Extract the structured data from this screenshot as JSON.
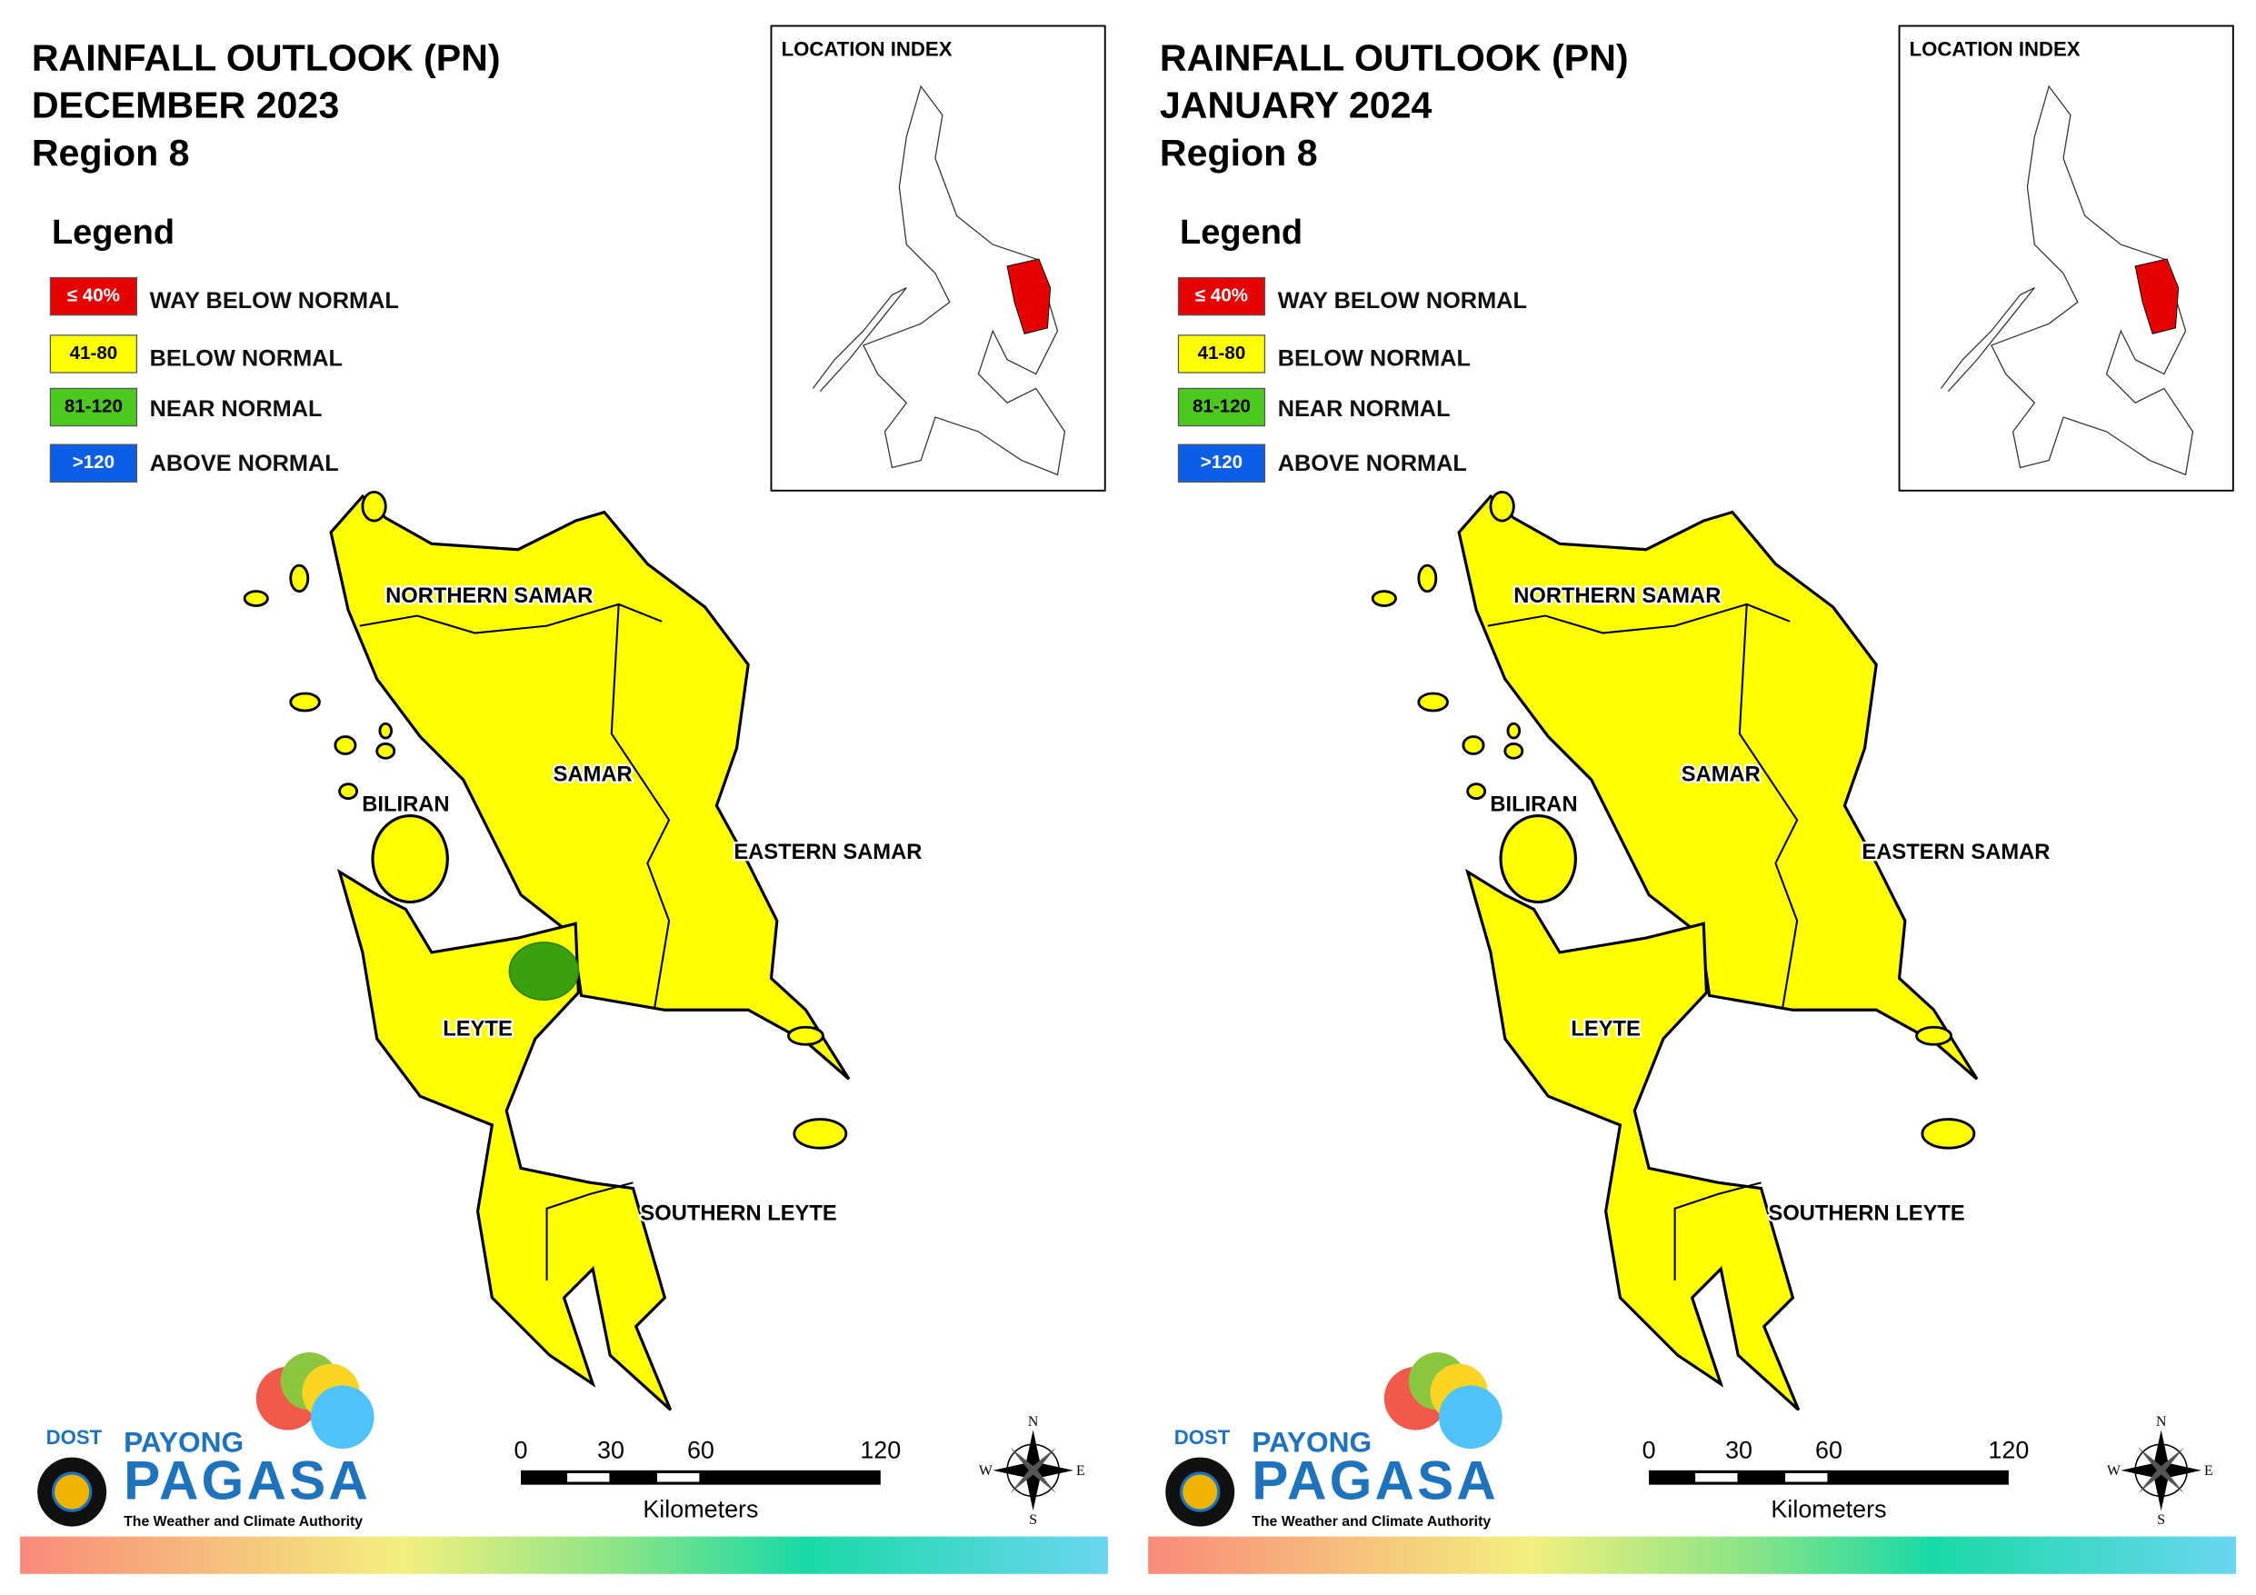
{
  "panels": [
    {
      "title": [
        "RAINFALL OUTLOOK (PN)",
        "DECEMBER 2023",
        "Region 8"
      ],
      "location_index": "LOCATION INDEX",
      "legend": {
        "title": "Legend",
        "items": [
          {
            "swatch": "≤ 40%",
            "label": "WAY BELOW NORMAL",
            "color": "#e60000"
          },
          {
            "swatch": "41-80",
            "label": "BELOW NORMAL",
            "color": "#ffff00"
          },
          {
            "swatch": "81-120",
            "label": "NEAR NORMAL",
            "color": "#4cc81e"
          },
          {
            "swatch": ">120",
            "label": "ABOVE NORMAL",
            "color": "#0a5fe6"
          }
        ]
      },
      "provinces": [
        "NORTHERN SAMAR",
        "SAMAR",
        "BILIRAN",
        "EASTERN SAMAR",
        "LEYTE",
        "SOUTHERN LEYTE"
      ],
      "scale": {
        "ticks": [
          0,
          30,
          60,
          120
        ],
        "unit": "Kilometers"
      },
      "compass": [
        "N",
        "E",
        "S",
        "W"
      ]
    },
    {
      "title": [
        "RAINFALL OUTLOOK (PN)",
        "JANUARY 2024",
        "Region 8"
      ],
      "location_index": "LOCATION INDEX",
      "legend": {
        "title": "Legend",
        "items": [
          {
            "swatch": "≤ 40%",
            "label": "WAY BELOW NORMAL",
            "color": "#e60000"
          },
          {
            "swatch": "41-80",
            "label": "BELOW NORMAL",
            "color": "#ffff00"
          },
          {
            "swatch": "81-120",
            "label": "NEAR NORMAL",
            "color": "#4cc81e"
          },
          {
            "swatch": ">120",
            "label": "ABOVE NORMAL",
            "color": "#0a5fe6"
          }
        ]
      },
      "provinces": [
        "NORTHERN SAMAR",
        "SAMAR",
        "BILIRAN",
        "EASTERN SAMAR",
        "LEYTE",
        "SOUTHERN LEYTE"
      ],
      "scale": {
        "ticks": [
          0,
          30,
          60,
          120
        ],
        "unit": "Kilometers"
      },
      "compass": [
        "N",
        "E",
        "S",
        "W"
      ]
    }
  ],
  "logo": {
    "agency": "DOST",
    "line1": "PAYONG",
    "line2": "PAGASA",
    "tagline": "The Weather and Climate Authority"
  }
}
